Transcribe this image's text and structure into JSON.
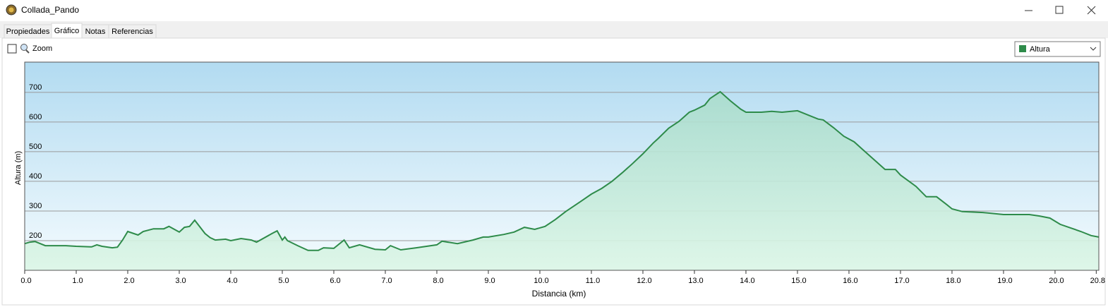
{
  "window": {
    "title": "Collada_Pando"
  },
  "tabs": [
    "Propiedades",
    "Gráfico",
    "Notas",
    "Referencias"
  ],
  "toolbar": {
    "zoom_label": "Zoom"
  },
  "chart_data": {
    "type": "area",
    "y_label": "Altura (m)",
    "x_label": "Distancia  (km)",
    "xlim": [
      0,
      20.85
    ],
    "ylim": [
      100,
      802
    ],
    "xticks": [
      {
        "value": 0,
        "label": "0.0"
      },
      {
        "value": 1,
        "label": "1.0"
      },
      {
        "value": 2,
        "label": "2.0"
      },
      {
        "value": 3,
        "label": "3.0"
      },
      {
        "value": 4,
        "label": "4.0"
      },
      {
        "value": 5,
        "label": "5.0"
      },
      {
        "value": 6,
        "label": "6.0"
      },
      {
        "value": 7,
        "label": "7.0"
      },
      {
        "value": 8,
        "label": "8.0"
      },
      {
        "value": 9,
        "label": "9.0"
      },
      {
        "value": 10,
        "label": "10.0"
      },
      {
        "value": 11,
        "label": "11.0"
      },
      {
        "value": 12,
        "label": "12.0"
      },
      {
        "value": 13,
        "label": "13.0"
      },
      {
        "value": 14,
        "label": "14.0"
      },
      {
        "value": 15,
        "label": "15.0"
      },
      {
        "value": 16,
        "label": "16.0"
      },
      {
        "value": 17,
        "label": "17.0"
      },
      {
        "value": 18,
        "label": "18.0"
      },
      {
        "value": 19,
        "label": "19.0"
      },
      {
        "value": 20,
        "label": "20.0"
      },
      20.8
    ],
    "yticks": [
      200,
      300,
      400,
      500,
      600,
      700
    ],
    "grid": true,
    "x": [
      0,
      0.1,
      0.2,
      0.4,
      0.8,
      1.0,
      1.3,
      1.4,
      1.5,
      1.7,
      1.8,
      1.9,
      2.0,
      2.2,
      2.3,
      2.5,
      2.7,
      2.8,
      3.0,
      3.1,
      3.2,
      3.3,
      3.5,
      3.6,
      3.7,
      3.9,
      4.0,
      4.2,
      4.4,
      4.5,
      4.8,
      4.9,
      5.0,
      5.05,
      5.1,
      5.3,
      5.5,
      5.7,
      5.8,
      6.0,
      6.2,
      6.3,
      6.5,
      6.8,
      7.0,
      7.1,
      7.3,
      7.6,
      8.0,
      8.1,
      8.4,
      8.7,
      8.9,
      9.0,
      9.3,
      9.5,
      9.7,
      9.9,
      10.1,
      10.3,
      10.5,
      10.8,
      11.0,
      11.2,
      11.4,
      11.6,
      11.8,
      12.0,
      12.2,
      12.3,
      12.5,
      12.7,
      12.9,
      13.0,
      13.2,
      13.3,
      13.5,
      13.7,
      13.9,
      14.0,
      14.3,
      14.5,
      14.7,
      15.0,
      15.2,
      15.4,
      15.5,
      15.7,
      15.9,
      16.1,
      16.3,
      16.5,
      16.7,
      16.9,
      17.0,
      17.3,
      17.5,
      17.7,
      17.9,
      18.0,
      18.2,
      18.6,
      19.0,
      19.5,
      19.7,
      19.9,
      20.1,
      20.3,
      20.5,
      20.7,
      20.85
    ],
    "series": [
      {
        "name": "Altura",
        "color": "#2e8b4a",
        "values": [
          190,
          195,
          197,
          183,
          183,
          181,
          179,
          186,
          181,
          176,
          178,
          202,
          231,
          219,
          231,
          240,
          240,
          248,
          229,
          245,
          248,
          269,
          224,
          210,
          202,
          205,
          200,
          207,
          202,
          195,
          224,
          233,
          202,
          212,
          200,
          183,
          167,
          167,
          176,
          174,
          202,
          176,
          186,
          171,
          169,
          183,
          169,
          176,
          186,
          198,
          190,
          202,
          212,
          212,
          221,
          229,
          245,
          238,
          248,
          271,
          298,
          333,
          357,
          376,
          400,
          429,
          460,
          493,
          529,
          545,
          579,
          602,
          633,
          640,
          657,
          679,
          702,
          671,
          643,
          633,
          633,
          636,
          633,
          638,
          624,
          610,
          607,
          581,
          552,
          533,
          502,
          471,
          440,
          440,
          421,
          383,
          348,
          348,
          321,
          307,
          298,
          295,
          288,
          288,
          283,
          276,
          255,
          243,
          231,
          217,
          212
        ]
      }
    ]
  }
}
